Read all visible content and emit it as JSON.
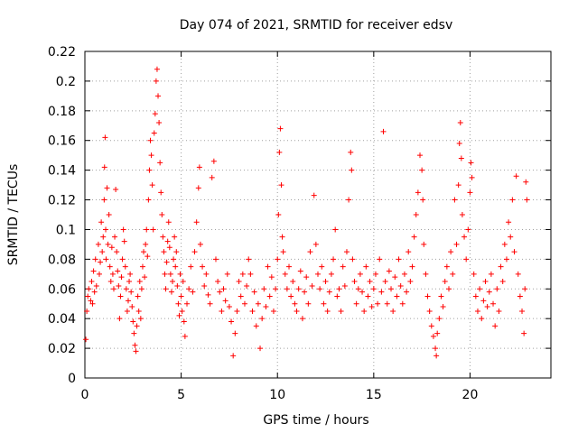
{
  "chart_data": {
    "type": "scatter",
    "title": "Day 074 of 2021, SRMTID for receiver edsv",
    "xlabel": "GPS time / hours",
    "ylabel": "SRMTID / TECUs",
    "xlim": [
      0,
      24.2
    ],
    "ylim": [
      0,
      0.22
    ],
    "x_ticks": [
      0,
      5,
      10,
      15,
      20
    ],
    "x_tick_labels": [
      "0",
      "5",
      "10",
      "15",
      "20"
    ],
    "y_ticks": [
      0,
      0.02,
      0.04,
      0.06,
      0.08,
      0.1,
      0.12,
      0.14,
      0.16,
      0.18,
      0.2,
      0.22
    ],
    "y_tick_labels": [
      "0",
      "0.02",
      "0.04",
      "0.06",
      "0.08",
      "0.1",
      "0.12",
      "0.14",
      "0.16",
      "0.18",
      "0.2",
      "0.22"
    ],
    "grid": true,
    "marker": "+",
    "color": "#ff0000",
    "series": [
      {
        "name": "SRMTID",
        "points": [
          [
            0.05,
            0.026
          ],
          [
            0.1,
            0.045
          ],
          [
            0.15,
            0.055
          ],
          [
            0.2,
            0.06
          ],
          [
            0.3,
            0.052
          ],
          [
            0.35,
            0.065
          ],
          [
            0.4,
            0.05
          ],
          [
            0.45,
            0.072
          ],
          [
            0.5,
            0.058
          ],
          [
            0.55,
            0.08
          ],
          [
            0.6,
            0.062
          ],
          [
            0.7,
            0.09
          ],
          [
            0.75,
            0.07
          ],
          [
            0.8,
            0.078
          ],
          [
            0.85,
            0.105
          ],
          [
            0.9,
            0.085
          ],
          [
            0.95,
            0.095
          ],
          [
            1.0,
            0.12
          ],
          [
            1.02,
            0.142
          ],
          [
            1.05,
            0.162
          ],
          [
            1.08,
            0.1
          ],
          [
            1.1,
            0.08
          ],
          [
            1.15,
            0.128
          ],
          [
            1.2,
            0.09
          ],
          [
            1.25,
            0.11
          ],
          [
            1.3,
            0.075
          ],
          [
            1.35,
            0.065
          ],
          [
            1.4,
            0.088
          ],
          [
            1.45,
            0.07
          ],
          [
            1.5,
            0.06
          ],
          [
            1.55,
            0.095
          ],
          [
            1.6,
            0.127
          ],
          [
            1.65,
            0.085
          ],
          [
            1.7,
            0.072
          ],
          [
            1.75,
            0.062
          ],
          [
            1.8,
            0.04
          ],
          [
            1.85,
            0.055
          ],
          [
            1.9,
            0.068
          ],
          [
            1.95,
            0.08
          ],
          [
            2.0,
            0.1
          ],
          [
            2.05,
            0.092
          ],
          [
            2.1,
            0.075
          ],
          [
            2.15,
            0.06
          ],
          [
            2.2,
            0.045
          ],
          [
            2.25,
            0.052
          ],
          [
            2.3,
            0.065
          ],
          [
            2.35,
            0.07
          ],
          [
            2.4,
            0.058
          ],
          [
            2.45,
            0.048
          ],
          [
            2.5,
            0.038
          ],
          [
            2.55,
            0.03
          ],
          [
            2.6,
            0.022
          ],
          [
            2.65,
            0.018
          ],
          [
            2.7,
            0.035
          ],
          [
            2.75,
            0.055
          ],
          [
            2.8,
            0.045
          ],
          [
            2.85,
            0.065
          ],
          [
            2.9,
            0.04
          ],
          [
            2.95,
            0.06
          ],
          [
            3.0,
            0.075
          ],
          [
            3.05,
            0.085
          ],
          [
            3.1,
            0.068
          ],
          [
            3.15,
            0.09
          ],
          [
            3.2,
            0.1
          ],
          [
            3.25,
            0.082
          ],
          [
            3.3,
            0.12
          ],
          [
            3.35,
            0.14
          ],
          [
            3.4,
            0.16
          ],
          [
            3.45,
            0.15
          ],
          [
            3.5,
            0.13
          ],
          [
            3.55,
            0.1
          ],
          [
            3.6,
            0.165
          ],
          [
            3.65,
            0.178
          ],
          [
            3.7,
            0.2
          ],
          [
            3.75,
            0.208
          ],
          [
            3.8,
            0.19
          ],
          [
            3.85,
            0.172
          ],
          [
            3.9,
            0.145
          ],
          [
            3.95,
            0.125
          ],
          [
            4.0,
            0.11
          ],
          [
            4.05,
            0.095
          ],
          [
            4.1,
            0.085
          ],
          [
            4.15,
            0.07
          ],
          [
            4.2,
            0.06
          ],
          [
            4.25,
            0.078
          ],
          [
            4.3,
            0.092
          ],
          [
            4.35,
            0.105
          ],
          [
            4.4,
            0.088
          ],
          [
            4.45,
            0.07
          ],
          [
            4.5,
            0.058
          ],
          [
            4.55,
            0.065
          ],
          [
            4.6,
            0.08
          ],
          [
            4.65,
            0.095
          ],
          [
            4.7,
            0.075
          ],
          [
            4.75,
            0.085
          ],
          [
            4.8,
            0.062
          ],
          [
            4.85,
            0.05
          ],
          [
            4.9,
            0.042
          ],
          [
            4.95,
            0.07
          ],
          [
            5.0,
            0.055
          ],
          [
            5.05,
            0.045
          ],
          [
            5.1,
            0.065
          ],
          [
            5.15,
            0.038
          ],
          [
            5.2,
            0.028
          ],
          [
            5.3,
            0.05
          ],
          [
            5.4,
            0.06
          ],
          [
            5.5,
            0.075
          ],
          [
            5.6,
            0.058
          ],
          [
            5.7,
            0.085
          ],
          [
            5.8,
            0.105
          ],
          [
            5.9,
            0.128
          ],
          [
            5.95,
            0.142
          ],
          [
            6.0,
            0.09
          ],
          [
            6.1,
            0.075
          ],
          [
            6.2,
            0.062
          ],
          [
            6.3,
            0.07
          ],
          [
            6.4,
            0.056
          ],
          [
            6.5,
            0.05
          ],
          [
            6.6,
            0.135
          ],
          [
            6.7,
            0.146
          ],
          [
            6.8,
            0.08
          ],
          [
            6.9,
            0.065
          ],
          [
            7.0,
            0.058
          ],
          [
            7.1,
            0.045
          ],
          [
            7.2,
            0.06
          ],
          [
            7.3,
            0.052
          ],
          [
            7.4,
            0.07
          ],
          [
            7.5,
            0.048
          ],
          [
            7.6,
            0.038
          ],
          [
            7.7,
            0.015
          ],
          [
            7.8,
            0.03
          ],
          [
            7.9,
            0.045
          ],
          [
            8.0,
            0.065
          ],
          [
            8.1,
            0.055
          ],
          [
            8.2,
            0.07
          ],
          [
            8.3,
            0.05
          ],
          [
            8.4,
            0.062
          ],
          [
            8.5,
            0.08
          ],
          [
            8.6,
            0.07
          ],
          [
            8.7,
            0.045
          ],
          [
            8.8,
            0.058
          ],
          [
            8.9,
            0.035
          ],
          [
            9.0,
            0.05
          ],
          [
            9.1,
            0.02
          ],
          [
            9.2,
            0.04
          ],
          [
            9.3,
            0.06
          ],
          [
            9.4,
            0.048
          ],
          [
            9.5,
            0.075
          ],
          [
            9.6,
            0.055
          ],
          [
            9.7,
            0.068
          ],
          [
            9.8,
            0.045
          ],
          [
            9.9,
            0.06
          ],
          [
            10.0,
            0.08
          ],
          [
            10.05,
            0.11
          ],
          [
            10.1,
            0.152
          ],
          [
            10.15,
            0.168
          ],
          [
            10.2,
            0.13
          ],
          [
            10.25,
            0.095
          ],
          [
            10.3,
            0.085
          ],
          [
            10.4,
            0.07
          ],
          [
            10.5,
            0.06
          ],
          [
            10.6,
            0.075
          ],
          [
            10.7,
            0.055
          ],
          [
            10.8,
            0.065
          ],
          [
            10.9,
            0.05
          ],
          [
            11.0,
            0.045
          ],
          [
            11.1,
            0.06
          ],
          [
            11.2,
            0.072
          ],
          [
            11.3,
            0.04
          ],
          [
            11.4,
            0.058
          ],
          [
            11.5,
            0.068
          ],
          [
            11.6,
            0.05
          ],
          [
            11.7,
            0.085
          ],
          [
            11.8,
            0.062
          ],
          [
            11.9,
            0.123
          ],
          [
            12.0,
            0.09
          ],
          [
            12.1,
            0.07
          ],
          [
            12.2,
            0.06
          ],
          [
            12.3,
            0.075
          ],
          [
            12.4,
            0.05
          ],
          [
            12.5,
            0.065
          ],
          [
            12.6,
            0.045
          ],
          [
            12.7,
            0.058
          ],
          [
            12.8,
            0.07
          ],
          [
            12.9,
            0.08
          ],
          [
            13.0,
            0.1
          ],
          [
            13.1,
            0.055
          ],
          [
            13.2,
            0.06
          ],
          [
            13.3,
            0.045
          ],
          [
            13.4,
            0.075
          ],
          [
            13.5,
            0.062
          ],
          [
            13.6,
            0.085
          ],
          [
            13.7,
            0.12
          ],
          [
            13.8,
            0.152
          ],
          [
            13.85,
            0.14
          ],
          [
            13.9,
            0.08
          ],
          [
            14.0,
            0.065
          ],
          [
            14.1,
            0.05
          ],
          [
            14.2,
            0.06
          ],
          [
            14.3,
            0.07
          ],
          [
            14.4,
            0.058
          ],
          [
            14.5,
            0.045
          ],
          [
            14.6,
            0.075
          ],
          [
            14.7,
            0.055
          ],
          [
            14.8,
            0.065
          ],
          [
            14.9,
            0.048
          ],
          [
            15.0,
            0.06
          ],
          [
            15.1,
            0.07
          ],
          [
            15.2,
            0.05
          ],
          [
            15.3,
            0.08
          ],
          [
            15.4,
            0.058
          ],
          [
            15.5,
            0.166
          ],
          [
            15.6,
            0.065
          ],
          [
            15.7,
            0.05
          ],
          [
            15.8,
            0.072
          ],
          [
            15.9,
            0.06
          ],
          [
            16.0,
            0.045
          ],
          [
            16.1,
            0.068
          ],
          [
            16.2,
            0.055
          ],
          [
            16.3,
            0.08
          ],
          [
            16.4,
            0.062
          ],
          [
            16.5,
            0.05
          ],
          [
            16.6,
            0.07
          ],
          [
            16.7,
            0.058
          ],
          [
            16.8,
            0.085
          ],
          [
            16.9,
            0.065
          ],
          [
            17.0,
            0.075
          ],
          [
            17.1,
            0.095
          ],
          [
            17.2,
            0.11
          ],
          [
            17.3,
            0.125
          ],
          [
            17.4,
            0.15
          ],
          [
            17.5,
            0.14
          ],
          [
            17.55,
            0.12
          ],
          [
            17.6,
            0.09
          ],
          [
            17.7,
            0.07
          ],
          [
            17.8,
            0.055
          ],
          [
            17.9,
            0.045
          ],
          [
            18.0,
            0.035
          ],
          [
            18.1,
            0.028
          ],
          [
            18.2,
            0.02
          ],
          [
            18.25,
            0.015
          ],
          [
            18.3,
            0.03
          ],
          [
            18.4,
            0.04
          ],
          [
            18.5,
            0.055
          ],
          [
            18.6,
            0.048
          ],
          [
            18.7,
            0.065
          ],
          [
            18.8,
            0.075
          ],
          [
            18.9,
            0.06
          ],
          [
            19.0,
            0.085
          ],
          [
            19.1,
            0.07
          ],
          [
            19.2,
            0.12
          ],
          [
            19.3,
            0.09
          ],
          [
            19.4,
            0.13
          ],
          [
            19.45,
            0.158
          ],
          [
            19.5,
            0.172
          ],
          [
            19.55,
            0.148
          ],
          [
            19.6,
            0.11
          ],
          [
            19.7,
            0.095
          ],
          [
            19.8,
            0.08
          ],
          [
            19.9,
            0.1
          ],
          [
            20.0,
            0.125
          ],
          [
            20.05,
            0.145
          ],
          [
            20.1,
            0.135
          ],
          [
            20.2,
            0.07
          ],
          [
            20.3,
            0.055
          ],
          [
            20.4,
            0.045
          ],
          [
            20.5,
            0.06
          ],
          [
            20.6,
            0.04
          ],
          [
            20.7,
            0.052
          ],
          [
            20.8,
            0.065
          ],
          [
            20.9,
            0.048
          ],
          [
            21.0,
            0.058
          ],
          [
            21.1,
            0.07
          ],
          [
            21.2,
            0.05
          ],
          [
            21.3,
            0.035
          ],
          [
            21.4,
            0.06
          ],
          [
            21.5,
            0.045
          ],
          [
            21.6,
            0.075
          ],
          [
            21.7,
            0.065
          ],
          [
            21.8,
            0.09
          ],
          [
            21.9,
            0.08
          ],
          [
            22.0,
            0.105
          ],
          [
            22.1,
            0.095
          ],
          [
            22.2,
            0.12
          ],
          [
            22.3,
            0.085
          ],
          [
            22.4,
            0.136
          ],
          [
            22.5,
            0.07
          ],
          [
            22.6,
            0.055
          ],
          [
            22.7,
            0.045
          ],
          [
            22.8,
            0.03
          ],
          [
            22.85,
            0.06
          ],
          [
            22.9,
            0.132
          ],
          [
            22.95,
            0.12
          ]
        ]
      }
    ]
  }
}
